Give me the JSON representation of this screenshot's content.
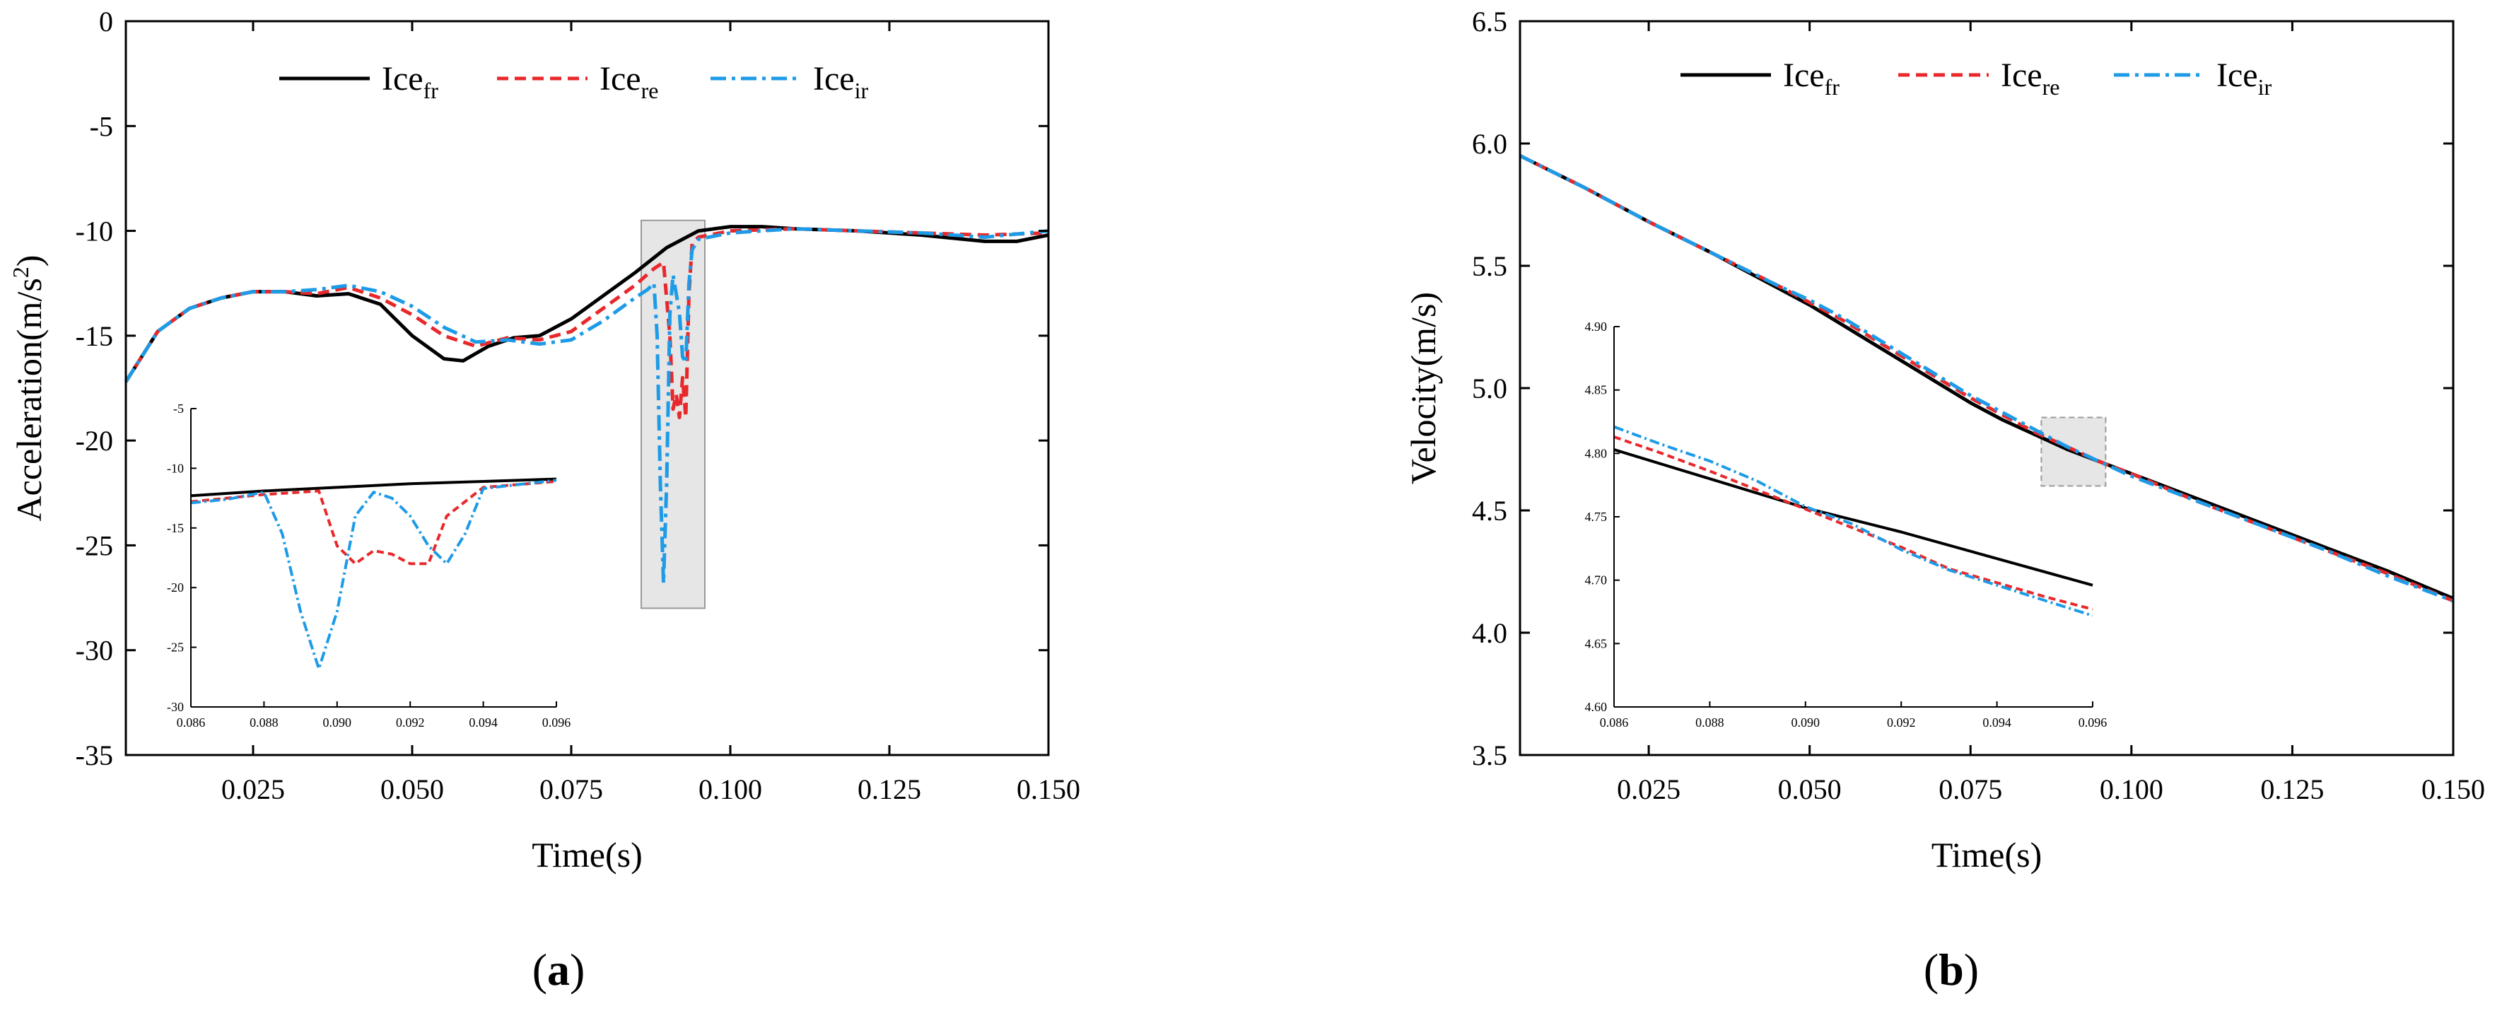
{
  "figure": {
    "panels": [
      {
        "label": "(a)",
        "label_prefix": "(",
        "label_letter": "a",
        "label_suffix": ")"
      },
      {
        "label": "(b)",
        "label_prefix": "(",
        "label_letter": "b",
        "label_suffix": ")"
      }
    ]
  },
  "colors": {
    "fr": "#000000",
    "re": "#e8282b",
    "ir": "#1e9be6",
    "zoom_box": "#e6e6e6",
    "zoom_box_edge": "#9a9a9a"
  },
  "chart_data": [
    {
      "id": "a",
      "type": "line",
      "title": "",
      "xlabel": "Time(s)",
      "ylabel_main": "Acceleration(m/s",
      "ylabel_sup": "2",
      "ylabel_tail": ")",
      "xlim": [
        0.005,
        0.15
      ],
      "ylim": [
        -35,
        0
      ],
      "xticks": [
        0.025,
        0.05,
        0.075,
        0.1,
        0.125,
        0.15
      ],
      "xtick_labels": [
        "0.025",
        "0.050",
        "0.075",
        "0.100",
        "0.125",
        "0.150"
      ],
      "yticks": [
        0,
        -5,
        -10,
        -15,
        -20,
        -25,
        -30,
        -35
      ],
      "ytick_labels": [
        "0",
        "-5",
        "-10",
        "-15",
        "-20",
        "-25",
        "-30",
        "-35"
      ],
      "legend": {
        "position": "top-center",
        "entries": [
          {
            "key": "fr",
            "base": "Ice",
            "sub": "fr",
            "style": "solid"
          },
          {
            "key": "re",
            "base": "Ice",
            "sub": "re",
            "style": "dashed"
          },
          {
            "key": "ir",
            "base": "Ice",
            "sub": "ir",
            "style": "dashdot"
          }
        ]
      },
      "zoom_region": {
        "x": [
          0.086,
          0.096
        ],
        "y": [
          -28,
          -9.5
        ]
      },
      "series": [
        {
          "key": "fr",
          "name": "Ice_fr",
          "x": [
            0.005,
            0.01,
            0.015,
            0.02,
            0.025,
            0.03,
            0.035,
            0.04,
            0.045,
            0.05,
            0.055,
            0.058,
            0.062,
            0.066,
            0.07,
            0.075,
            0.08,
            0.085,
            0.09,
            0.095,
            0.1,
            0.105,
            0.11,
            0.12,
            0.13,
            0.14,
            0.145,
            0.15
          ],
          "y": [
            -17.2,
            -14.8,
            -13.7,
            -13.2,
            -12.9,
            -12.9,
            -13.1,
            -13.0,
            -13.5,
            -15.0,
            -16.1,
            -16.2,
            -15.5,
            -15.1,
            -15.0,
            -14.2,
            -13.1,
            -12.0,
            -10.8,
            -10.0,
            -9.8,
            -9.8,
            -9.9,
            -10.0,
            -10.2,
            -10.5,
            -10.5,
            -10.2
          ]
        },
        {
          "key": "re",
          "name": "Ice_re",
          "x": [
            0.005,
            0.01,
            0.015,
            0.02,
            0.025,
            0.03,
            0.035,
            0.04,
            0.045,
            0.05,
            0.055,
            0.06,
            0.065,
            0.07,
            0.075,
            0.08,
            0.085,
            0.088,
            0.0895,
            0.0905,
            0.091,
            0.0915,
            0.092,
            0.0925,
            0.093,
            0.0935,
            0.094,
            0.095,
            0.1,
            0.11,
            0.12,
            0.13,
            0.14,
            0.15
          ],
          "y": [
            -17.2,
            -14.8,
            -13.7,
            -13.2,
            -12.9,
            -12.9,
            -13.0,
            -12.7,
            -13.2,
            -14.0,
            -15.0,
            -15.5,
            -15.1,
            -15.2,
            -14.8,
            -13.7,
            -12.6,
            -11.8,
            -11.5,
            -15.0,
            -18.5,
            -17.8,
            -18.9,
            -17.0,
            -18.9,
            -13.0,
            -10.6,
            -10.3,
            -10.0,
            -9.9,
            -10.0,
            -10.1,
            -10.2,
            -10.1
          ]
        },
        {
          "key": "ir",
          "name": "Ice_ir",
          "x": [
            0.005,
            0.01,
            0.015,
            0.02,
            0.025,
            0.03,
            0.035,
            0.04,
            0.045,
            0.05,
            0.055,
            0.06,
            0.065,
            0.07,
            0.075,
            0.08,
            0.085,
            0.087,
            0.088,
            0.0885,
            0.089,
            0.0895,
            0.09,
            0.0905,
            0.091,
            0.0915,
            0.092,
            0.0925,
            0.093,
            0.0935,
            0.094,
            0.095,
            0.1,
            0.11,
            0.12,
            0.13,
            0.14,
            0.15
          ],
          "y": [
            -17.2,
            -14.8,
            -13.7,
            -13.2,
            -12.9,
            -12.9,
            -12.8,
            -12.6,
            -12.9,
            -13.6,
            -14.6,
            -15.3,
            -15.2,
            -15.4,
            -15.2,
            -14.3,
            -13.2,
            -12.8,
            -12.5,
            -15.0,
            -22.0,
            -26.8,
            -22.0,
            -14.0,
            -12.1,
            -13.0,
            -13.9,
            -16.0,
            -16.3,
            -12.5,
            -10.9,
            -10.4,
            -10.1,
            -9.9,
            -10.0,
            -10.1,
            -10.3,
            -10.0
          ]
        }
      ],
      "inset": {
        "xlim": [
          0.086,
          0.096
        ],
        "ylim": [
          -30,
          -5
        ],
        "xticks": [
          0.086,
          0.088,
          0.09,
          0.092,
          0.094,
          0.096
        ],
        "xtick_labels": [
          "0.086",
          "0.088",
          "0.090",
          "0.092",
          "0.094",
          "0.096"
        ],
        "yticks": [
          -5,
          -10,
          -15,
          -20,
          -25,
          -30
        ],
        "ytick_labels": [
          "-5",
          "-10",
          "-15",
          "-20",
          "-25",
          "-30"
        ],
        "series": [
          {
            "key": "fr",
            "x": [
              0.086,
              0.088,
              0.09,
              0.092,
              0.094,
              0.096
            ],
            "y": [
              -12.3,
              -11.9,
              -11.6,
              -11.3,
              -11.1,
              -10.9
            ]
          },
          {
            "key": "re",
            "x": [
              0.086,
              0.088,
              0.089,
              0.0895,
              0.09,
              0.0905,
              0.091,
              0.0915,
              0.092,
              0.0925,
              0.093,
              0.094,
              0.096
            ],
            "y": [
              -12.8,
              -12.2,
              -12.0,
              -11.9,
              -16.5,
              -18.0,
              -16.9,
              -17.2,
              -18.0,
              -18.0,
              -14.0,
              -11.6,
              -11.1
            ]
          },
          {
            "key": "ir",
            "x": [
              0.086,
              0.087,
              0.088,
              0.0885,
              0.089,
              0.0895,
              0.09,
              0.0905,
              0.091,
              0.0915,
              0.092,
              0.0925,
              0.093,
              0.0935,
              0.094,
              0.096
            ],
            "y": [
              -12.9,
              -12.6,
              -12.0,
              -15.5,
              -22.0,
              -26.8,
              -22.0,
              -14.0,
              -12.0,
              -12.5,
              -14.0,
              -16.5,
              -18.0,
              -15.5,
              -11.7,
              -11.0
            ]
          }
        ]
      }
    },
    {
      "id": "b",
      "type": "line",
      "title": "",
      "xlabel": "Time(s)",
      "ylabel": "Velocity(m/s)",
      "xlim": [
        0.005,
        0.15
      ],
      "ylim": [
        3.5,
        6.5
      ],
      "xticks": [
        0.025,
        0.05,
        0.075,
        0.1,
        0.125,
        0.15
      ],
      "xtick_labels": [
        "0.025",
        "0.050",
        "0.075",
        "0.100",
        "0.125",
        "0.150"
      ],
      "yticks": [
        6.5,
        6.0,
        5.5,
        5.0,
        4.5,
        4.0,
        3.5
      ],
      "ytick_labels": [
        "6.5",
        "6.0",
        "5.5",
        "5.0",
        "4.5",
        "4.0",
        "3.5"
      ],
      "legend": {
        "position": "top-center",
        "entries": [
          {
            "key": "fr",
            "base": "Ice",
            "sub": "fr",
            "style": "solid"
          },
          {
            "key": "re",
            "base": "Ice",
            "sub": "re",
            "style": "dashed"
          },
          {
            "key": "ir",
            "base": "Ice",
            "sub": "ir",
            "style": "dashdot"
          }
        ]
      },
      "zoom_region": {
        "x": [
          0.086,
          0.096
        ],
        "y": [
          4.6,
          4.88
        ]
      },
      "series": [
        {
          "key": "fr",
          "name": "Ice_fr",
          "x": [
            0.005,
            0.015,
            0.025,
            0.035,
            0.045,
            0.05,
            0.055,
            0.06,
            0.065,
            0.07,
            0.075,
            0.08,
            0.085,
            0.09,
            0.095,
            0.1,
            0.11,
            0.12,
            0.13,
            0.14,
            0.15
          ],
          "y": [
            5.95,
            5.82,
            5.68,
            5.55,
            5.41,
            5.34,
            5.26,
            5.18,
            5.1,
            5.02,
            4.94,
            4.87,
            4.81,
            4.75,
            4.7,
            4.65,
            4.55,
            4.45,
            4.35,
            4.25,
            4.14
          ]
        },
        {
          "key": "re",
          "name": "Ice_re",
          "x": [
            0.005,
            0.015,
            0.025,
            0.035,
            0.045,
            0.05,
            0.055,
            0.06,
            0.065,
            0.07,
            0.075,
            0.08,
            0.085,
            0.09,
            0.095,
            0.1,
            0.11,
            0.12,
            0.13,
            0.14,
            0.15
          ],
          "y": [
            5.95,
            5.82,
            5.68,
            5.55,
            5.42,
            5.35,
            5.28,
            5.2,
            5.12,
            5.04,
            4.96,
            4.89,
            4.82,
            4.76,
            4.7,
            4.65,
            4.54,
            4.44,
            4.34,
            4.24,
            4.13
          ]
        },
        {
          "key": "ir",
          "name": "Ice_ir",
          "x": [
            0.005,
            0.015,
            0.025,
            0.035,
            0.045,
            0.05,
            0.055,
            0.06,
            0.065,
            0.07,
            0.075,
            0.08,
            0.085,
            0.09,
            0.095,
            0.1,
            0.11,
            0.12,
            0.13,
            0.14,
            0.15
          ],
          "y": [
            5.95,
            5.82,
            5.68,
            5.55,
            5.42,
            5.36,
            5.29,
            5.21,
            5.13,
            5.05,
            4.97,
            4.9,
            4.83,
            4.76,
            4.7,
            4.64,
            4.54,
            4.44,
            4.34,
            4.23,
            4.13
          ]
        }
      ],
      "inset": {
        "xlim": [
          0.086,
          0.096
        ],
        "ylim": [
          4.6,
          4.9
        ],
        "xticks": [
          0.086,
          0.088,
          0.09,
          0.092,
          0.094,
          0.096
        ],
        "xtick_labels": [
          "0.086",
          "0.088",
          "0.090",
          "0.092",
          "0.094",
          "0.096"
        ],
        "yticks": [
          4.9,
          4.85,
          4.8,
          4.75,
          4.7,
          4.65,
          4.6
        ],
        "ytick_labels": [
          "4.90",
          "4.85",
          "4.80",
          "4.75",
          "4.70",
          "4.65",
          "4.60"
        ],
        "series": [
          {
            "key": "fr",
            "x": [
              0.086,
              0.088,
              0.09,
              0.092,
              0.094,
              0.096
            ],
            "y": [
              4.803,
              4.78,
              4.757,
              4.738,
              4.717,
              4.696
            ]
          },
          {
            "key": "re",
            "x": [
              0.086,
              0.087,
              0.088,
              0.089,
              0.09,
              0.091,
              0.092,
              0.093,
              0.094,
              0.095,
              0.096
            ],
            "y": [
              4.813,
              4.8,
              4.786,
              4.771,
              4.756,
              4.741,
              4.726,
              4.709,
              4.698,
              4.687,
              4.677
            ]
          },
          {
            "key": "ir",
            "x": [
              0.086,
              0.087,
              0.088,
              0.089,
              0.09,
              0.091,
              0.092,
              0.093,
              0.094,
              0.095,
              0.096
            ],
            "y": [
              4.821,
              4.807,
              4.794,
              4.778,
              4.758,
              4.744,
              4.724,
              4.708,
              4.696,
              4.684,
              4.672
            ]
          }
        ]
      }
    }
  ]
}
